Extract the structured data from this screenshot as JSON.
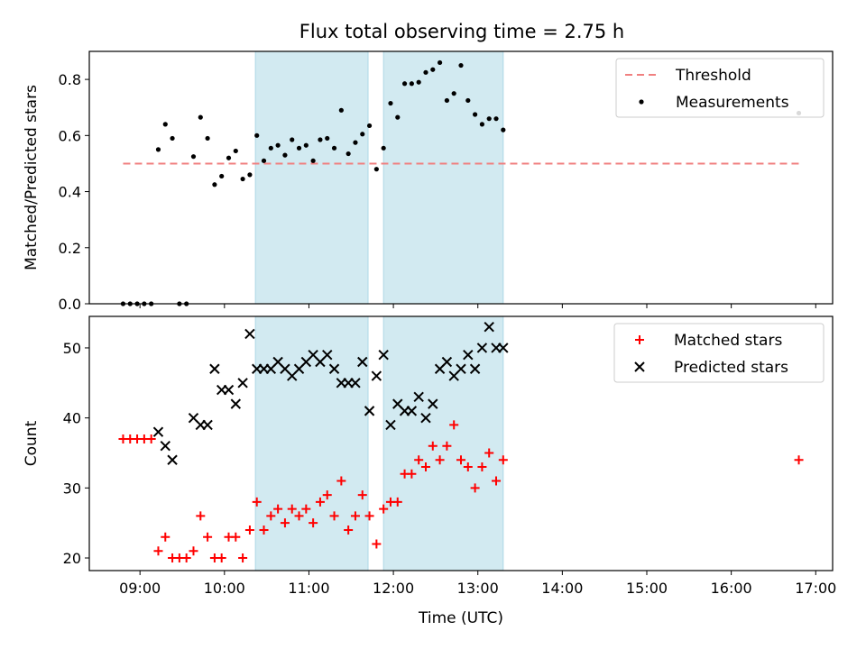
{
  "title": "Flux total observing time = 2.75 h",
  "colors": {
    "threshold": "#f08080",
    "measure": "#000000",
    "matched": "#ff0000",
    "predicted": "#000000",
    "band": "#add8e6"
  },
  "chart_data": [
    {
      "type": "scatter",
      "ylabel": "Matched/Predicted stars",
      "ylim": [
        0,
        0.9
      ],
      "xlim_hours": [
        8.4,
        17.2
      ],
      "yticks": [
        0.0,
        0.2,
        0.4,
        0.6,
        0.8
      ],
      "ytick_labels": [
        "0.0",
        "0.2",
        "0.4",
        "0.6",
        "0.8"
      ],
      "shaded_bands": [
        [
          "10:22",
          "11:42"
        ],
        [
          "11:53",
          "13:18"
        ]
      ],
      "legend": {
        "placement": "top-right",
        "entries": [
          "Threshold",
          "Measurements"
        ]
      },
      "threshold": {
        "name": "Threshold",
        "y": 0.5,
        "x_range": [
          "08:48",
          "16:48"
        ]
      },
      "series": [
        {
          "name": "Measurements",
          "marker": "dot",
          "x": [
            "08:48",
            "08:53",
            "08:58",
            "09:03",
            "09:08",
            "09:13",
            "09:18",
            "09:23",
            "09:28",
            "09:33",
            "09:38",
            "09:43",
            "09:48",
            "09:53",
            "09:58",
            "10:03",
            "10:08",
            "10:13",
            "10:18",
            "10:23",
            "10:28",
            "10:33",
            "10:38",
            "10:43",
            "10:48",
            "10:53",
            "10:58",
            "11:03",
            "11:08",
            "11:13",
            "11:18",
            "11:23",
            "11:28",
            "11:33",
            "11:38",
            "11:43",
            "11:48",
            "11:53",
            "11:58",
            "12:03",
            "12:08",
            "12:13",
            "12:18",
            "12:23",
            "12:28",
            "12:33",
            "12:38",
            "12:43",
            "12:48",
            "12:53",
            "12:58",
            "13:03",
            "13:08",
            "13:13",
            "13:18",
            "16:48"
          ],
          "y": [
            0.0,
            0.0,
            0.0,
            0.0,
            0.0,
            0.55,
            0.64,
            0.59,
            0.0,
            0.0,
            0.525,
            0.665,
            0.59,
            0.425,
            0.455,
            0.52,
            0.545,
            0.445,
            0.46,
            0.6,
            0.51,
            0.555,
            0.565,
            0.53,
            0.585,
            0.555,
            0.565,
            0.51,
            0.585,
            0.59,
            0.555,
            0.69,
            0.535,
            0.575,
            0.605,
            0.635,
            0.48,
            0.555,
            0.715,
            0.665,
            0.785,
            0.785,
            0.79,
            0.825,
            0.835,
            0.86,
            0.725,
            0.75,
            0.85,
            0.725,
            0.675,
            0.64,
            0.66,
            0.66,
            0.62,
            0.68
          ]
        }
      ]
    },
    {
      "type": "scatter",
      "xlabel": "Time (UTC)",
      "ylabel": "Count",
      "ylim": [
        18.2,
        54.5
      ],
      "xlim_hours": [
        8.4,
        17.2
      ],
      "yticks": [
        20,
        30,
        40,
        50
      ],
      "ytick_labels": [
        "20",
        "30",
        "40",
        "50"
      ],
      "xticks": [
        "09:00",
        "10:00",
        "11:00",
        "12:00",
        "13:00",
        "14:00",
        "15:00",
        "16:00",
        "17:00"
      ],
      "shaded_bands": [
        [
          "10:22",
          "11:42"
        ],
        [
          "11:53",
          "13:18"
        ]
      ],
      "legend": {
        "placement": "top-right",
        "entries": [
          "Matched stars",
          "Predicted stars"
        ]
      },
      "series": [
        {
          "name": "Matched stars",
          "marker": "+",
          "x": [
            "08:48",
            "08:53",
            "08:58",
            "09:03",
            "09:08",
            "09:13",
            "09:18",
            "09:23",
            "09:28",
            "09:33",
            "09:38",
            "09:43",
            "09:48",
            "09:53",
            "09:58",
            "10:03",
            "10:08",
            "10:13",
            "10:18",
            "10:23",
            "10:28",
            "10:33",
            "10:38",
            "10:43",
            "10:48",
            "10:53",
            "10:58",
            "11:03",
            "11:08",
            "11:13",
            "11:18",
            "11:23",
            "11:28",
            "11:33",
            "11:38",
            "11:43",
            "11:48",
            "11:53",
            "11:58",
            "12:03",
            "12:08",
            "12:13",
            "12:18",
            "12:23",
            "12:28",
            "12:33",
            "12:38",
            "12:43",
            "12:48",
            "12:53",
            "12:58",
            "13:03",
            "13:08",
            "13:13",
            "13:18",
            "16:48"
          ],
          "y": [
            37,
            37,
            37,
            37,
            37,
            21,
            23,
            20,
            20,
            20,
            21,
            26,
            23,
            20,
            20,
            23,
            23,
            20,
            24,
            28,
            24,
            26,
            27,
            25,
            27,
            26,
            27,
            25,
            28,
            29,
            26,
            31,
            24,
            26,
            29,
            26,
            22,
            27,
            28,
            28,
            32,
            32,
            34,
            33,
            36,
            34,
            36,
            39,
            34,
            33,
            30,
            33,
            35,
            31,
            34,
            34
          ]
        },
        {
          "name": "Predicted stars",
          "marker": "x",
          "x": [
            "09:13",
            "09:18",
            "09:23",
            "09:38",
            "09:43",
            "09:48",
            "09:53",
            "09:58",
            "10:03",
            "10:08",
            "10:13",
            "10:18",
            "10:23",
            "10:28",
            "10:33",
            "10:38",
            "10:43",
            "10:48",
            "10:53",
            "10:58",
            "11:03",
            "11:08",
            "11:13",
            "11:18",
            "11:23",
            "11:28",
            "11:33",
            "11:38",
            "11:43",
            "11:48",
            "11:53",
            "11:58",
            "12:03",
            "12:08",
            "12:13",
            "12:18",
            "12:23",
            "12:28",
            "12:33",
            "12:38",
            "12:43",
            "12:48",
            "12:53",
            "12:58",
            "13:03",
            "13:08",
            "13:13",
            "13:18"
          ],
          "y": [
            38,
            36,
            34,
            40,
            39,
            39,
            47,
            44,
            44,
            42,
            45,
            52,
            47,
            47,
            47,
            48,
            47,
            46,
            47,
            48,
            49,
            48,
            49,
            47,
            45,
            45,
            45,
            48,
            41,
            46,
            49,
            39,
            42,
            41,
            41,
            43,
            40,
            42,
            47,
            48,
            46,
            47,
            49,
            47,
            50,
            53,
            50,
            50
          ]
        }
      ]
    }
  ]
}
